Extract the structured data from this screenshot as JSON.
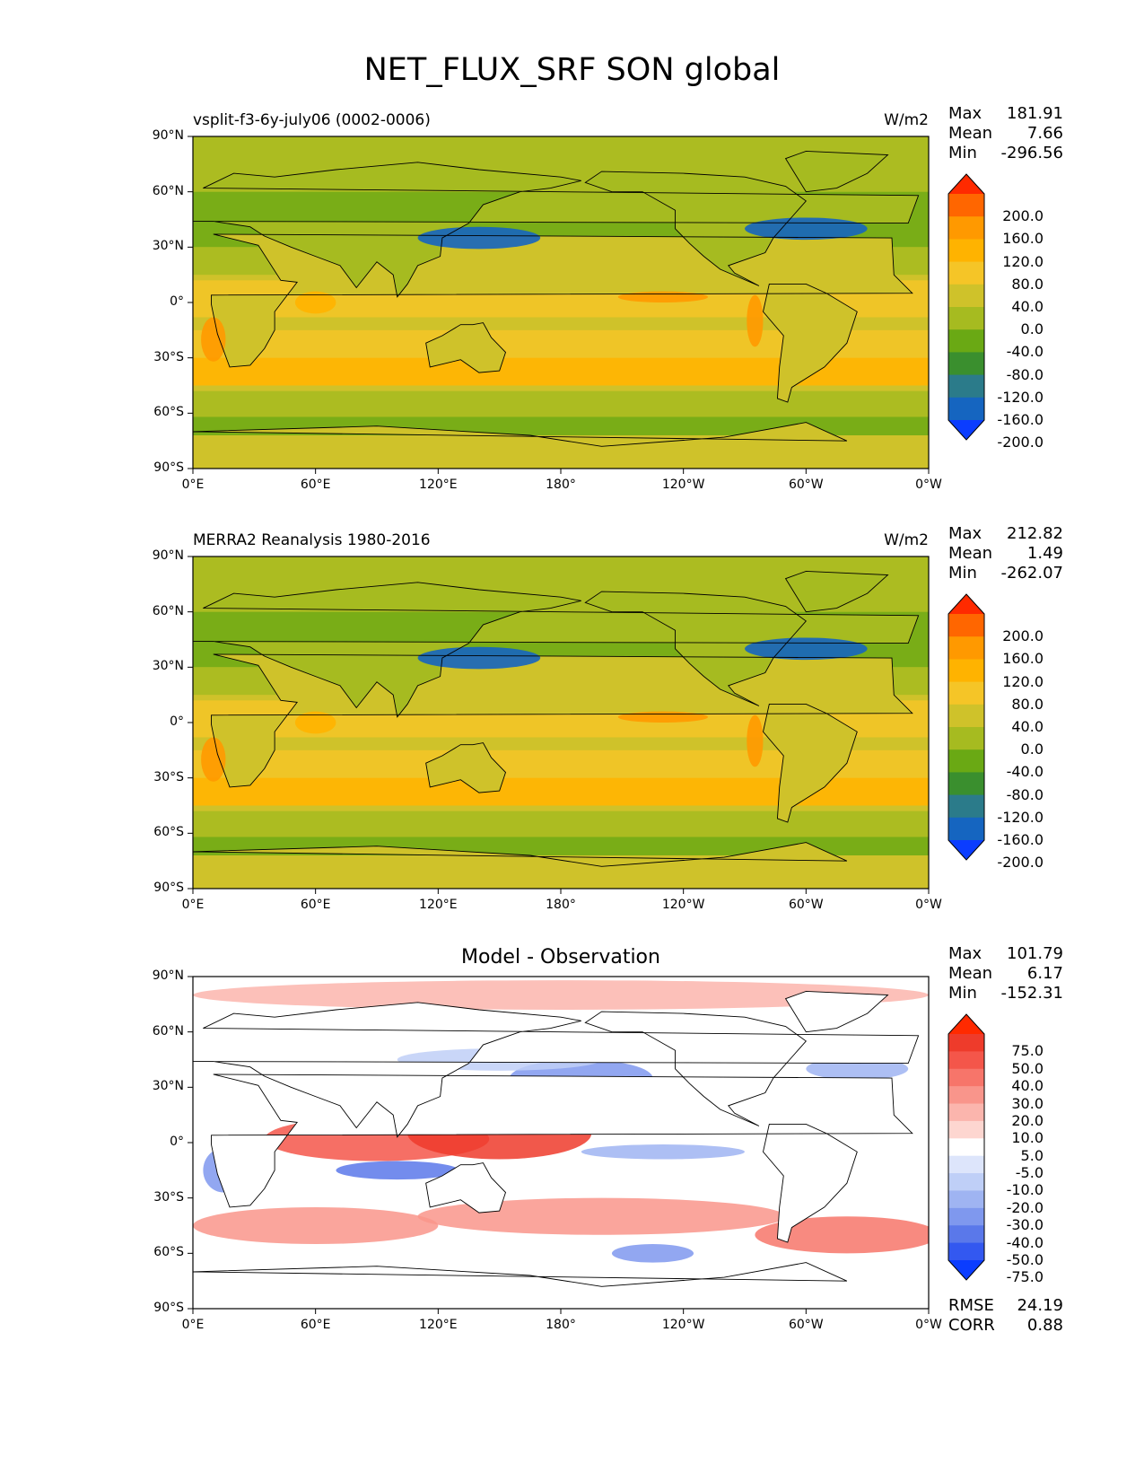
{
  "title": "NET_FLUX_SRF SON global",
  "axes": {
    "lat_ticks": [
      "90°N",
      "60°N",
      "30°N",
      "0°",
      "30°S",
      "60°S",
      "90°S"
    ],
    "lon_ticks": [
      "0°E",
      "60°E",
      "120°E",
      "180°",
      "120°W",
      "60°W",
      "0°W"
    ]
  },
  "panels": [
    {
      "title_left": "vsplit-f3-6y-july06 (0002-0006)",
      "title_right": "W/m2",
      "title_center": "",
      "stats": [
        {
          "label": "Max",
          "value": "181.91"
        },
        {
          "label": "Mean",
          "value": "7.66"
        },
        {
          "label": "Min",
          "value": "-296.56"
        }
      ],
      "colorbar": {
        "labels": [
          "200.0",
          "160.0",
          "120.0",
          "80.0",
          "40.0",
          "0.0",
          "-40.0",
          "-80.0",
          "-120.0",
          "-160.0",
          "-200.0"
        ],
        "colors": [
          "#ff2a00",
          "#ff6600",
          "#ff9900",
          "#ffb300",
          "#f5c527",
          "#cfc22a",
          "#a6bb20",
          "#6aa914",
          "#3a8f2e",
          "#2b7b8a",
          "#1565c0",
          "#0b3dff"
        ]
      }
    },
    {
      "title_left": "MERRA2 Reanalysis 1980-2016",
      "title_right": "W/m2",
      "title_center": "",
      "stats": [
        {
          "label": "Max",
          "value": "212.82"
        },
        {
          "label": "Mean",
          "value": "1.49"
        },
        {
          "label": "Min",
          "value": "-262.07"
        }
      ],
      "colorbar": {
        "labels": [
          "200.0",
          "160.0",
          "120.0",
          "80.0",
          "40.0",
          "0.0",
          "-40.0",
          "-80.0",
          "-120.0",
          "-160.0",
          "-200.0"
        ],
        "colors": [
          "#ff2a00",
          "#ff6600",
          "#ff9900",
          "#ffb300",
          "#f5c527",
          "#cfc22a",
          "#a6bb20",
          "#6aa914",
          "#3a8f2e",
          "#2b7b8a",
          "#1565c0",
          "#0b3dff"
        ]
      }
    },
    {
      "title_left": "",
      "title_right": "",
      "title_center": "Model - Observation",
      "stats": [
        {
          "label": "Max",
          "value": "101.79"
        },
        {
          "label": "Mean",
          "value": "6.17"
        },
        {
          "label": "Min",
          "value": "-152.31"
        }
      ],
      "footer": [
        {
          "label": "RMSE",
          "value": "24.19"
        },
        {
          "label": "CORR",
          "value": "0.88"
        }
      ],
      "colorbar": {
        "labels": [
          "75.0",
          "50.0",
          "40.0",
          "30.0",
          "20.0",
          "10.0",
          "5.0",
          "-5.0",
          "-10.0",
          "-20.0",
          "-30.0",
          "-40.0",
          "-50.0",
          "-75.0"
        ],
        "colors": [
          "#ff2a00",
          "#ee3b2b",
          "#f4564a",
          "#f7756a",
          "#f9958b",
          "#fbb5ad",
          "#fdd6d0",
          "#ffffff",
          "#dde5fb",
          "#bfcff7",
          "#9fb4f2",
          "#7f98ee",
          "#5a78ea",
          "#3358f0",
          "#0b3dff"
        ]
      }
    }
  ]
}
